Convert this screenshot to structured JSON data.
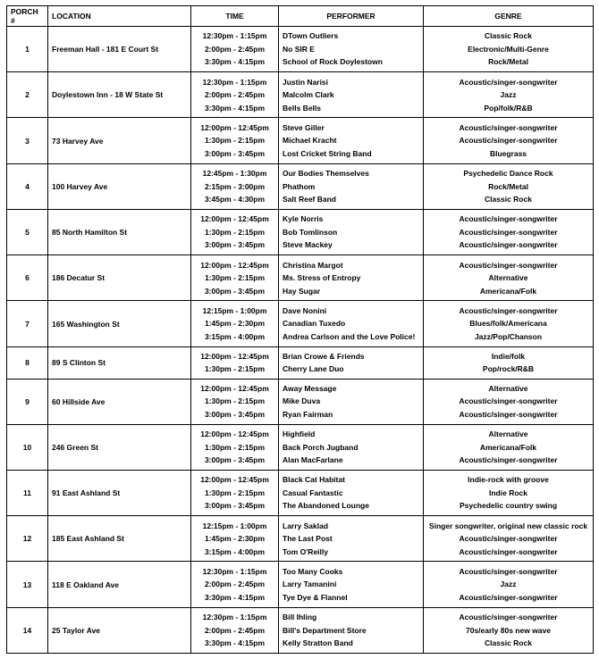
{
  "header": {
    "columns": [
      "PORCH #",
      "LOCATION",
      "TIME",
      "PERFORMER",
      "GENRE"
    ]
  },
  "rows": [
    {
      "porch": 1,
      "location": "Freeman Hall - 181 E Court St",
      "slots": [
        {
          "time": "12:30pm - 1:15pm",
          "performer": "DTown Outliers",
          "genre": "Classic Rock"
        },
        {
          "time": "2:00pm - 2:45pm",
          "performer": "No SIR E",
          "genre": "Electronic/Multi-Genre"
        },
        {
          "time": "3:30pm - 4:15pm",
          "performer": "School of Rock Doylestown",
          "genre": "Rock/Metal"
        }
      ]
    },
    {
      "porch": 2,
      "location": "Doylestown Inn - 18 W State St",
      "slots": [
        {
          "time": "12:30pm - 1:15pm",
          "performer": "Justin Narisi",
          "genre": "Acoustic/singer-songwriter"
        },
        {
          "time": "2:00pm - 2:45pm",
          "performer": "Malcolm Clark",
          "genre": "Jazz"
        },
        {
          "time": "3:30pm - 4:15pm",
          "performer": "Bells Bells",
          "genre": "Pop/folk/R&B"
        }
      ]
    },
    {
      "porch": 3,
      "location": "73 Harvey Ave",
      "slots": [
        {
          "time": "12:00pm - 12:45pm",
          "performer": "Steve Giller",
          "genre": "Acoustic/singer-songwriter"
        },
        {
          "time": "1:30pm - 2:15pm",
          "performer": "Michael Kracht",
          "genre": "Acoustic/singer-songwriter"
        },
        {
          "time": "3:00pm - 3:45pm",
          "performer": "Lost Cricket String Band",
          "genre": "Bluegrass"
        }
      ]
    },
    {
      "porch": 4,
      "location": "100 Harvey Ave",
      "slots": [
        {
          "time": "12:45pm - 1:30pm",
          "performer": "Our Bodies Themselves",
          "genre": "Psychedelic Dance Rock"
        },
        {
          "time": "2:15pm - 3:00pm",
          "performer": "Phathom",
          "genre": "Rock/Metal"
        },
        {
          "time": "3:45pm - 4:30pm",
          "performer": "Salt Reef Band",
          "genre": "Classic Rock"
        }
      ]
    },
    {
      "porch": 5,
      "location": "85 North Hamilton St",
      "slots": [
        {
          "time": "12:00pm - 12:45pm",
          "performer": "Kyle Norris",
          "genre": "Acoustic/singer-songwriter"
        },
        {
          "time": "1:30pm - 2:15pm",
          "performer": "Bob Tomlinson",
          "genre": "Acoustic/singer-songwriter"
        },
        {
          "time": "3:00pm - 3:45pm",
          "performer": "Steve Mackey",
          "genre": "Acoustic/singer-songwriter"
        }
      ]
    },
    {
      "porch": 6,
      "location": "186 Decatur St",
      "slots": [
        {
          "time": "12:00pm - 12:45pm",
          "performer": "Christina Margot",
          "genre": "Acoustic/singer-songwriter"
        },
        {
          "time": "1:30pm - 2:15pm",
          "performer": "Ms. Stress of Entropy",
          "genre": "Alternative"
        },
        {
          "time": "3:00pm - 3:45pm",
          "performer": "Hay Sugar",
          "genre": "Americana/Folk"
        }
      ]
    },
    {
      "porch": 7,
      "location": "165 Washington St",
      "slots": [
        {
          "time": "12:15pm - 1:00pm",
          "performer": "Dave Nonini",
          "genre": "Acoustic/singer-songwriter"
        },
        {
          "time": "1:45pm - 2:30pm",
          "performer": "Canadian Tuxedo",
          "genre": "Blues/folk/Americana"
        },
        {
          "time": "3:15pm - 4:00pm",
          "performer": "Andrea Carlson and the Love Police!",
          "genre": "Jazz/Pop/Chanson"
        }
      ]
    },
    {
      "porch": 8,
      "location": "89 S Clinton St",
      "slots": [
        {
          "time": "12:00pm - 12:45pm",
          "performer": "Brian Crowe & Friends",
          "genre": "Indie/folk"
        },
        {
          "time": "1:30pm - 2:15pm",
          "performer": "Cherry Lane Duo",
          "genre": "Pop/rock/R&B"
        }
      ]
    },
    {
      "porch": 9,
      "location": "60 Hillside Ave",
      "slots": [
        {
          "time": "12:00pm - 12:45pm",
          "performer": "Away Message",
          "genre": "Alternative"
        },
        {
          "time": "1:30pm - 2:15pm",
          "performer": "Mike Duva",
          "genre": "Acoustic/singer-songwriter"
        },
        {
          "time": "3:00pm - 3:45pm",
          "performer": "Ryan Fairman",
          "genre": "Acoustic/singer-songwriter"
        }
      ]
    },
    {
      "porch": 10,
      "location": "246 Green St",
      "slots": [
        {
          "time": "12:00pm - 12:45pm",
          "performer": "Highfield",
          "genre": "Alternative"
        },
        {
          "time": "1:30pm - 2:15pm",
          "performer": "Back Porch Jugband",
          "genre": "Americana/Folk"
        },
        {
          "time": "3:00pm - 3:45pm",
          "performer": "Alan MacFarlane",
          "genre": "Acoustic/singer-songwriter"
        }
      ]
    },
    {
      "porch": 11,
      "location": "91 East Ashland St",
      "slots": [
        {
          "time": "12:00pm - 12:45pm",
          "performer": "Black Cat Habitat",
          "genre": "Indie-rock with groove"
        },
        {
          "time": "1:30pm - 2:15pm",
          "performer": "Casual Fantastic",
          "genre": "Indie Rock"
        },
        {
          "time": "3:00pm - 3:45pm",
          "performer": "The Abandoned Lounge",
          "genre": "Psychedelic country swing"
        }
      ]
    },
    {
      "porch": 12,
      "location": "185 East Ashland St",
      "slots": [
        {
          "time": "12:15pm - 1:00pm",
          "performer": "Larry Saklad",
          "genre": "Singer songwriter, original new classic rock"
        },
        {
          "time": "1:45pm - 2:30pm",
          "performer": "The Last Post",
          "genre": "Acoustic/singer-songwriter"
        },
        {
          "time": "3:15pm - 4:00pm",
          "performer": "Tom O'Reilly",
          "genre": "Acoustic/singer-songwriter"
        }
      ]
    },
    {
      "porch": 13,
      "location": "118 E Oakland Ave",
      "slots": [
        {
          "time": "12:30pm - 1:15pm",
          "performer": "Too Many Cooks",
          "genre": "Acoustic/singer-songwriter"
        },
        {
          "time": "2:00pm - 2:45pm",
          "performer": "Larry Tamanini",
          "genre": "Jazz"
        },
        {
          "time": "3:30pm - 4:15pm",
          "performer": "Tye Dye & Flannel",
          "genre": "Acoustic/singer-songwriter"
        }
      ]
    },
    {
      "porch": 14,
      "location": "25 Taylor Ave",
      "slots": [
        {
          "time": "12:30pm - 1:15pm",
          "performer": "Bill Ihling",
          "genre": "Acoustic/singer-songwriter"
        },
        {
          "time": "2:00pm - 2:45pm",
          "performer": "Bill's Department Store",
          "genre": "70s/early 80s new wave"
        },
        {
          "time": "3:30pm - 4:15pm",
          "performer": "Kelly Stratton Band",
          "genre": "Classic Rock"
        }
      ]
    }
  ]
}
